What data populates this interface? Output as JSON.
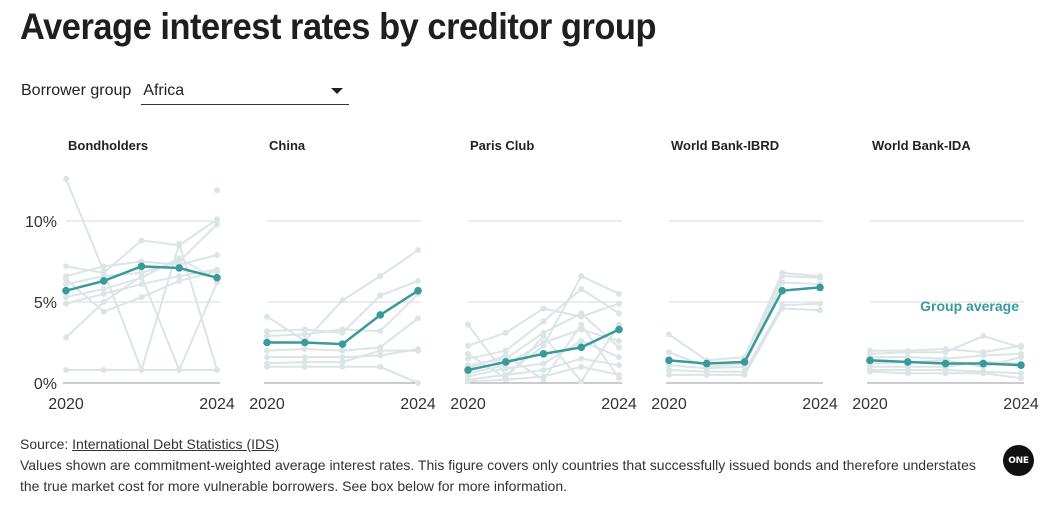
{
  "title": "Average interest rates by creditor group",
  "filter": {
    "label": "Borrower group",
    "value": "Africa"
  },
  "footer": {
    "source_prefix": "Source: ",
    "source_link": "International Debt Statistics (IDS)",
    "note": "Values shown are commitment-weighted average interest rates. This figure covers only countries that successfully issued bonds and therefore understates the true market cost for more vulnerable borrowers. See box below for more information."
  },
  "logo": {
    "text": "ONE"
  },
  "colors": {
    "average": "#3a9a9b",
    "countries": "#dbe5e6",
    "grid": "#d9d9d9"
  },
  "chart_data": {
    "type": "line",
    "x": [
      2020,
      2021,
      2022,
      2023,
      2024
    ],
    "xticks": [
      "2020",
      "2024"
    ],
    "ylim": [
      0,
      13
    ],
    "yticks": [
      0,
      5,
      10
    ],
    "ytick_labels": [
      "0%",
      "5%",
      "10%"
    ],
    "grid": true,
    "annotation": "Group average",
    "panels": [
      {
        "name": "Bondholders",
        "average": [
          5.7,
          6.3,
          7.2,
          7.1,
          6.5
        ],
        "countries": [
          [
            12.6,
            6.9,
            0.8,
            8.6,
            0.8
          ],
          [
            7.2,
            6.8,
            8.8,
            8.5,
            10.1
          ],
          [
            6.6,
            7.2,
            7.5,
            7.3,
            7.9
          ],
          [
            6.1,
            6.6,
            6.8,
            7.5,
            9.8
          ],
          [
            5.3,
            5.8,
            6.5,
            7.7,
            6.4
          ],
          [
            4.9,
            5.5,
            6.1,
            6.6,
            7.0
          ],
          [
            2.8,
            5.0,
            6.6,
            0.8,
            6.2
          ],
          [
            6.4,
            4.4,
            5.3,
            6.3,
            6.9
          ],
          [
            0.8,
            0.8,
            0.8,
            0.8,
            0.8
          ]
        ],
        "extra_points": [
          [
            2024,
            11.9
          ]
        ]
      },
      {
        "name": "China",
        "average": [
          2.5,
          2.5,
          2.4,
          4.2,
          5.7
        ],
        "countries": [
          [
            4.1,
            2.6,
            5.1,
            6.6,
            8.2
          ],
          [
            3.2,
            3.3,
            3.1,
            5.4,
            6.3
          ],
          [
            2.9,
            3.0,
            3.3,
            3.2,
            5.5
          ],
          [
            2.0,
            2.1,
            2.0,
            2.2,
            4.0
          ],
          [
            1.6,
            1.6,
            1.6,
            1.7,
            2.1
          ],
          [
            1.2,
            1.3,
            1.3,
            2.0,
            2.0
          ],
          [
            1.0,
            1.0,
            1.0,
            1.0,
            0.0
          ]
        ],
        "extra_points": []
      },
      {
        "name": "Paris Club",
        "average": [
          0.8,
          1.3,
          1.8,
          2.2,
          3.3
        ],
        "countries": [
          [
            3.6,
            0.5,
            2.3,
            6.6,
            5.5
          ],
          [
            2.3,
            3.1,
            4.6,
            4.1,
            4.9
          ],
          [
            1.5,
            2.0,
            3.8,
            5.8,
            4.3
          ],
          [
            1.1,
            1.5,
            3.1,
            4.3,
            2.2
          ],
          [
            0.6,
            1.1,
            2.5,
            3.3,
            2.6
          ],
          [
            0.4,
            0.9,
            1.2,
            2.6,
            1.6
          ],
          [
            0.2,
            0.5,
            0.8,
            1.5,
            1.1
          ],
          [
            0.1,
            0.2,
            0.4,
            1.0,
            0.5
          ],
          [
            1.8,
            0.3,
            2.9,
            0.1,
            3.6
          ],
          [
            0.9,
            1.7,
            0.2,
            3.6,
            0.3
          ]
        ],
        "extra_points": []
      },
      {
        "name": "World Bank-IBRD",
        "average": [
          1.4,
          1.2,
          1.3,
          5.7,
          5.9
        ],
        "countries": [
          [
            3.0,
            1.4,
            1.6,
            6.8,
            6.6
          ],
          [
            1.9,
            1.0,
            1.2,
            6.6,
            6.5
          ],
          [
            1.1,
            0.9,
            1.0,
            6.2,
            6.1
          ],
          [
            0.8,
            0.7,
            0.7,
            4.8,
            4.9
          ],
          [
            0.5,
            0.5,
            0.5,
            4.6,
            4.5
          ]
        ],
        "extra_points": []
      },
      {
        "name": "World Bank-IDA",
        "average": [
          1.4,
          1.3,
          1.2,
          1.2,
          1.1
        ],
        "countries": [
          [
            2.0,
            2.0,
            2.1,
            1.9,
            2.3
          ],
          [
            1.8,
            1.9,
            1.9,
            2.9,
            2.2
          ],
          [
            1.6,
            1.6,
            1.5,
            1.7,
            1.8
          ],
          [
            1.2,
            1.3,
            1.4,
            1.0,
            1.6
          ],
          [
            1.0,
            1.0,
            1.0,
            1.3,
            1.2
          ],
          [
            0.8,
            0.8,
            0.8,
            0.7,
            0.6
          ],
          [
            0.7,
            0.6,
            0.6,
            0.6,
            0.3
          ]
        ],
        "extra_points": []
      }
    ]
  }
}
